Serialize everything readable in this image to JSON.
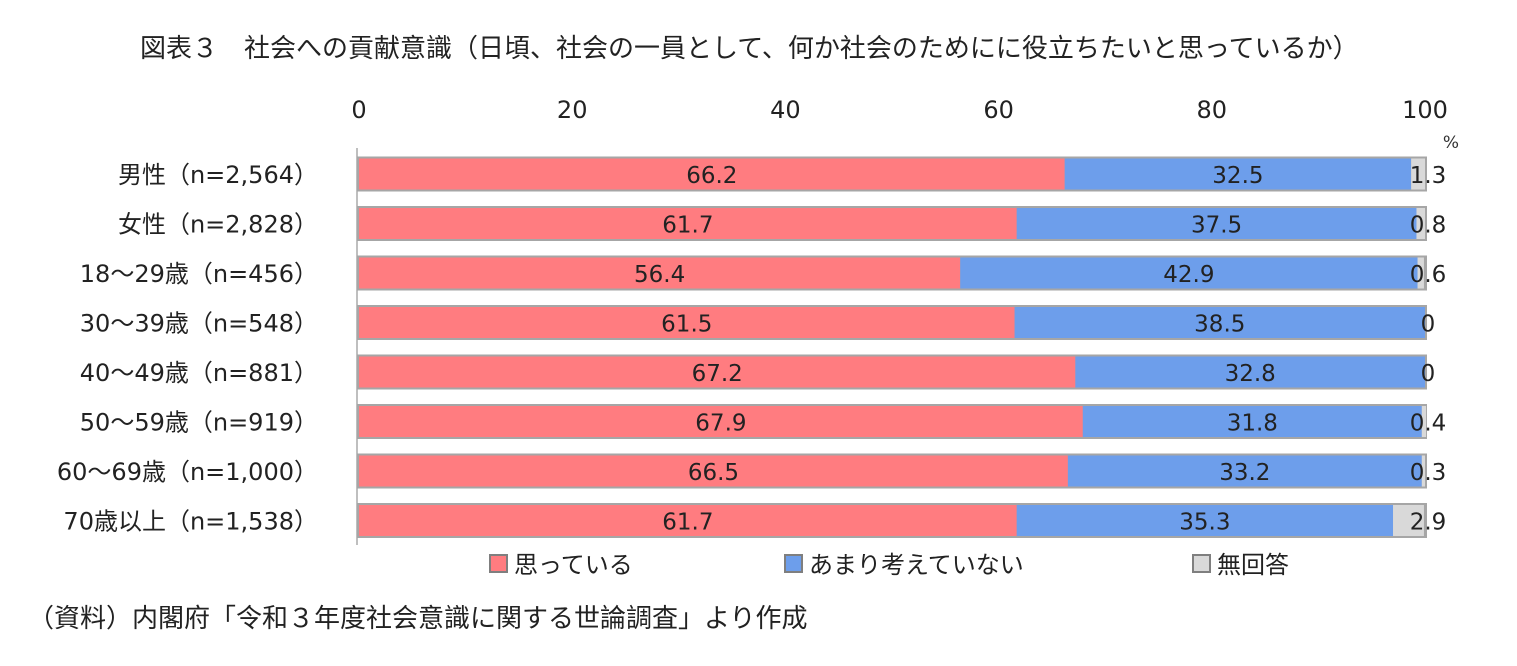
{
  "title": "図表３　社会への貢献意識（日頃、社会の一員として、何か社会のためにに役立ちたいと思っているか）",
  "source": "（資料）内閣府「令和３年度社会意識に関する世論調査」より作成",
  "chart_data": {
    "type": "bar",
    "orientation": "horizontal",
    "stacked": true,
    "unit_label": "%",
    "xlim": [
      0,
      100
    ],
    "x_ticks": [
      "0",
      "20",
      "40",
      "60",
      "80",
      "100"
    ],
    "categories": [
      "男性（n=2,564）",
      "女性（n=2,828）",
      "18～29歳（n=456）",
      "30～39歳（n=548）",
      "40～49歳（n=881）",
      "50～59歳（n=919）",
      "60～69歳（n=1,000）",
      "70歳以上（n=1,538）"
    ],
    "series": [
      {
        "name": "思っている",
        "color": "#ff7c80",
        "values": [
          66.2,
          61.7,
          56.4,
          61.5,
          67.2,
          67.9,
          66.5,
          61.7
        ],
        "labels": [
          "66.2",
          "61.7",
          "56.4",
          "61.5",
          "67.2",
          "67.9",
          "66.5",
          "61.7"
        ]
      },
      {
        "name": "あまり考えていない",
        "color": "#6d9eeb",
        "values": [
          32.5,
          37.5,
          42.9,
          38.5,
          32.8,
          31.8,
          33.2,
          35.3
        ],
        "labels": [
          "32.5",
          "37.5",
          "42.9",
          "38.5",
          "32.8",
          "31.8",
          "33.2",
          "35.3"
        ]
      },
      {
        "name": "無回答",
        "color": "#d9d9d9",
        "values": [
          1.3,
          0.8,
          0.6,
          0,
          0,
          0.4,
          0.3,
          2.9
        ],
        "labels": [
          "1.3",
          "0.8",
          "0.6",
          "0",
          "0",
          "0.4",
          "0.3",
          "2.9"
        ]
      }
    ],
    "legend_position": "bottom",
    "grid": false
  }
}
